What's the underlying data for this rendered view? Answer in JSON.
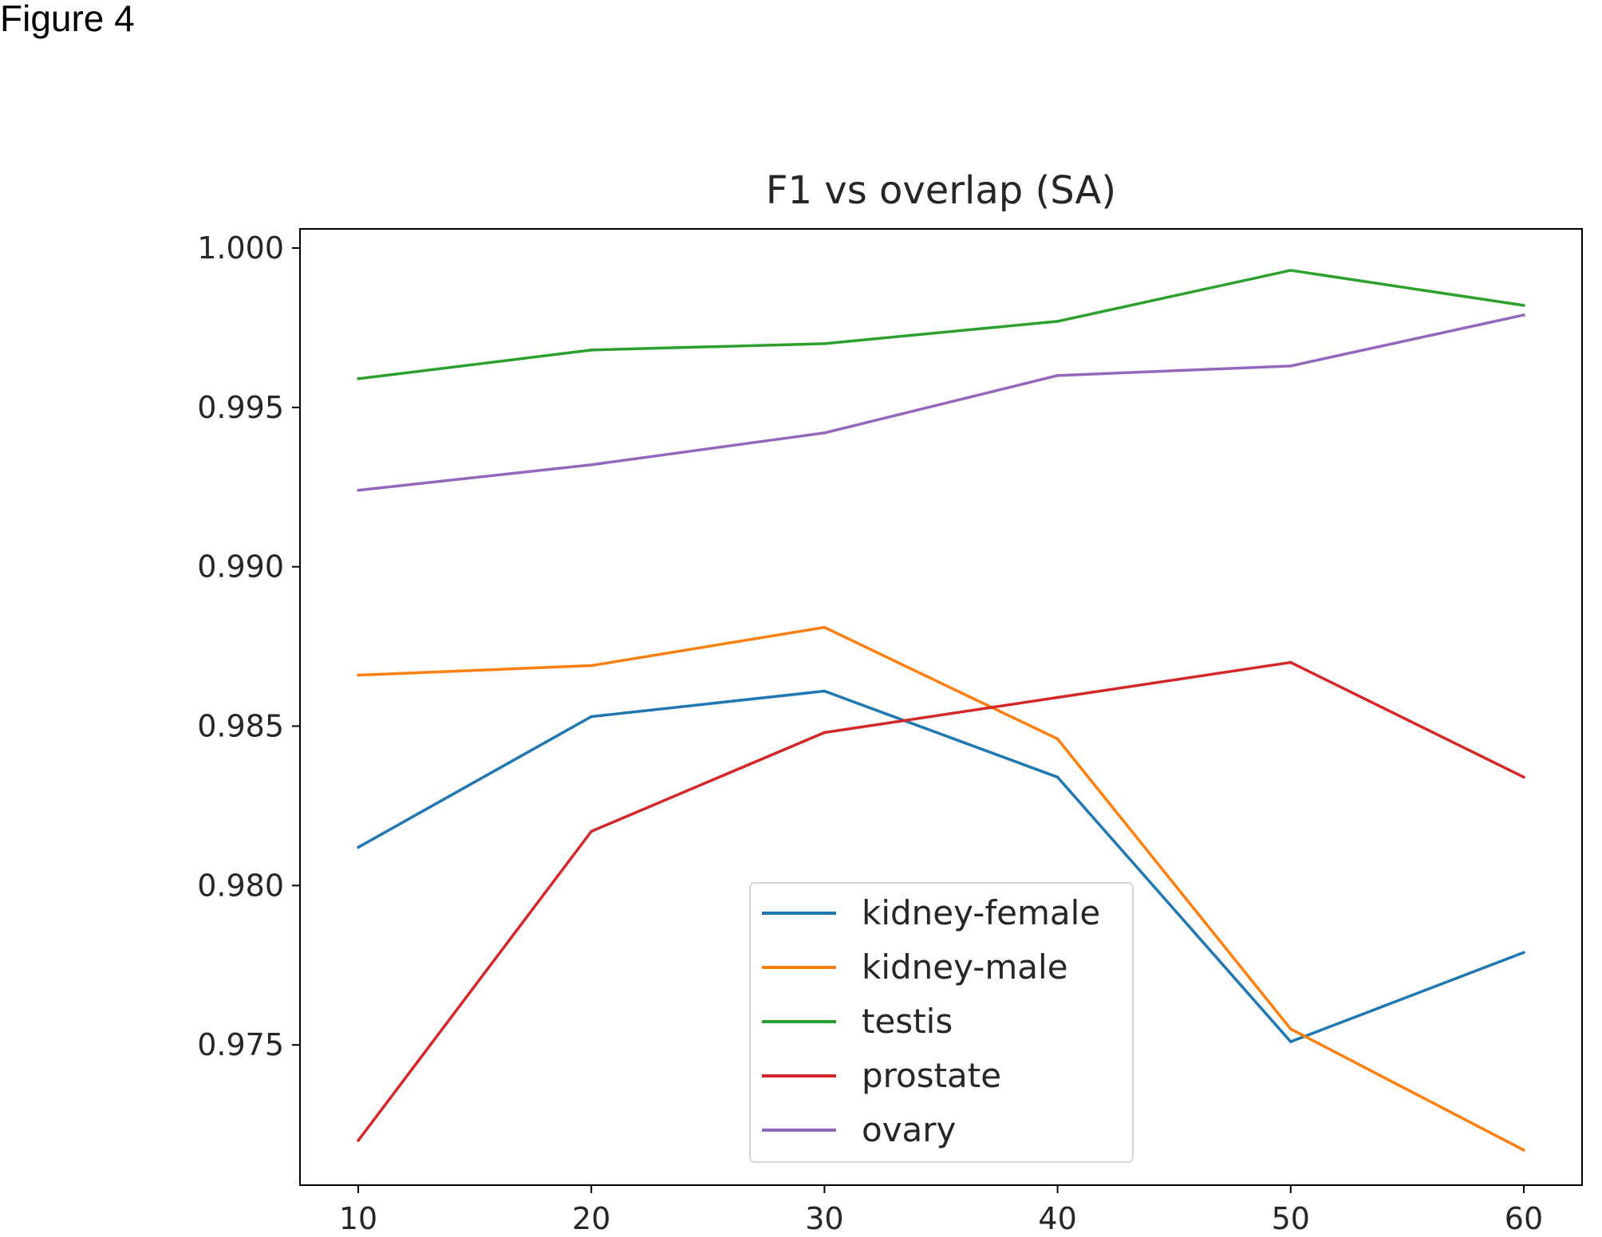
{
  "figure_label": "Figure 4",
  "chart_data": {
    "type": "line",
    "title": "F1 vs overlap (SA)",
    "xlabel": "",
    "ylabel": "",
    "x": [
      10,
      20,
      30,
      40,
      50,
      60
    ],
    "xlim": [
      7.5,
      62.5
    ],
    "ylim": [
      0.9706,
      1.0006
    ],
    "x_ticks": [
      10,
      20,
      30,
      40,
      50,
      60
    ],
    "x_tick_labels": [
      "10",
      "20",
      "30",
      "40",
      "50",
      "60"
    ],
    "y_ticks": [
      0.975,
      0.98,
      0.985,
      0.99,
      0.995,
      1.0
    ],
    "y_tick_labels": [
      "0.975",
      "0.980",
      "0.985",
      "0.990",
      "0.995",
      "1.000"
    ],
    "grid": false,
    "legend_position": "lower center",
    "series": [
      {
        "name": "kidney-female",
        "color": "#1f77b4",
        "values": [
          0.9812,
          0.9853,
          0.9861,
          0.9834,
          0.9751,
          0.9779
        ]
      },
      {
        "name": "kidney-male",
        "color": "#ff7f0e",
        "values": [
          0.9866,
          0.9869,
          0.9881,
          0.9846,
          0.9755,
          0.9717
        ]
      },
      {
        "name": "testis",
        "color": "#2ca02c",
        "values": [
          0.9959,
          0.9968,
          0.997,
          0.9977,
          0.9993,
          0.9982
        ]
      },
      {
        "name": "prostate",
        "color": "#d62728",
        "values": [
          0.972,
          0.9817,
          0.9848,
          0.9859,
          0.987,
          0.9834
        ]
      },
      {
        "name": "ovary",
        "color": "#9467bd",
        "values": [
          0.9924,
          0.9932,
          0.9942,
          0.996,
          0.9963,
          0.9979
        ]
      }
    ]
  }
}
